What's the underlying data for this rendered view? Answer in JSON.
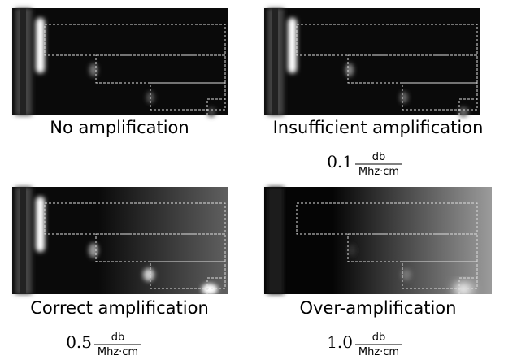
{
  "panels": [
    {
      "caption": "No amplification"
    },
    {
      "caption": "Insufficient amplification",
      "coefficient": "0.1",
      "unit_numerator": "db",
      "unit_denominator": "Mhz·cm"
    },
    {
      "caption": "Correct amplification",
      "coefficient": "0.5",
      "unit_numerator": "db",
      "unit_denominator": "Mhz·cm"
    },
    {
      "caption": "Over-amplification",
      "coefficient": "1.0",
      "unit_numerator": "db",
      "unit_denominator": "Mhz·cm"
    }
  ]
}
